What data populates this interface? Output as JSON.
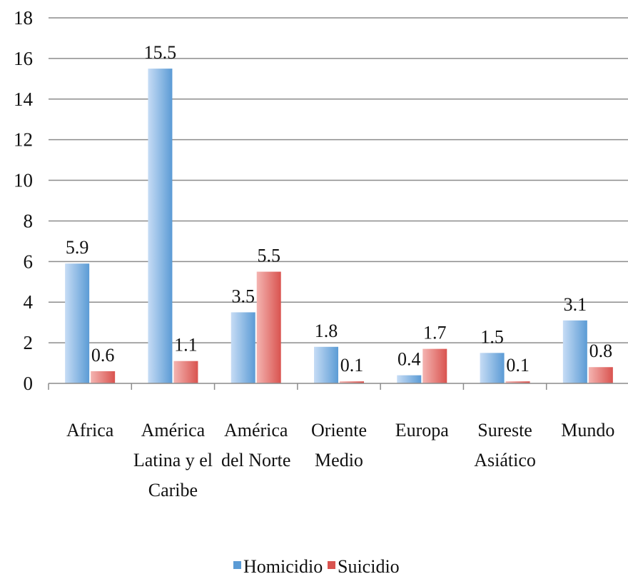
{
  "chart_data": {
    "type": "bar",
    "categories": [
      [
        "Africa"
      ],
      [
        "América",
        "Latina y el",
        "Caribe"
      ],
      [
        "América",
        "del Norte"
      ],
      [
        "Oriente",
        "Medio"
      ],
      [
        "Europa"
      ],
      [
        "Sureste",
        "Asiático"
      ],
      [
        "Mundo"
      ]
    ],
    "series": [
      {
        "name": "Homicidio",
        "values": [
          5.9,
          15.5,
          3.5,
          1.8,
          0.4,
          1.5,
          3.1
        ],
        "labels": [
          "5.9",
          "15.5",
          "3.5",
          "1.8",
          "0.4",
          "1.5",
          "3.1"
        ],
        "color": "#5b9bd5",
        "color_light": "#c6dcf5"
      },
      {
        "name": "Suicidio",
        "values": [
          0.6,
          1.1,
          5.5,
          0.1,
          1.7,
          0.1,
          0.8
        ],
        "labels": [
          "0.6",
          "1.1",
          "5.5",
          "0.1",
          "1.7",
          "0.1",
          "0.8"
        ],
        "color": "#d9534f",
        "color_light": "#f4b4b1"
      }
    ],
    "ylim": [
      0,
      18
    ],
    "yticks": [
      "0",
      "2",
      "4",
      "6",
      "8",
      "10",
      "12",
      "14",
      "16",
      "18"
    ],
    "grid": true,
    "legend_position": "bottom",
    "title": "",
    "xlabel": "",
    "ylabel": ""
  }
}
